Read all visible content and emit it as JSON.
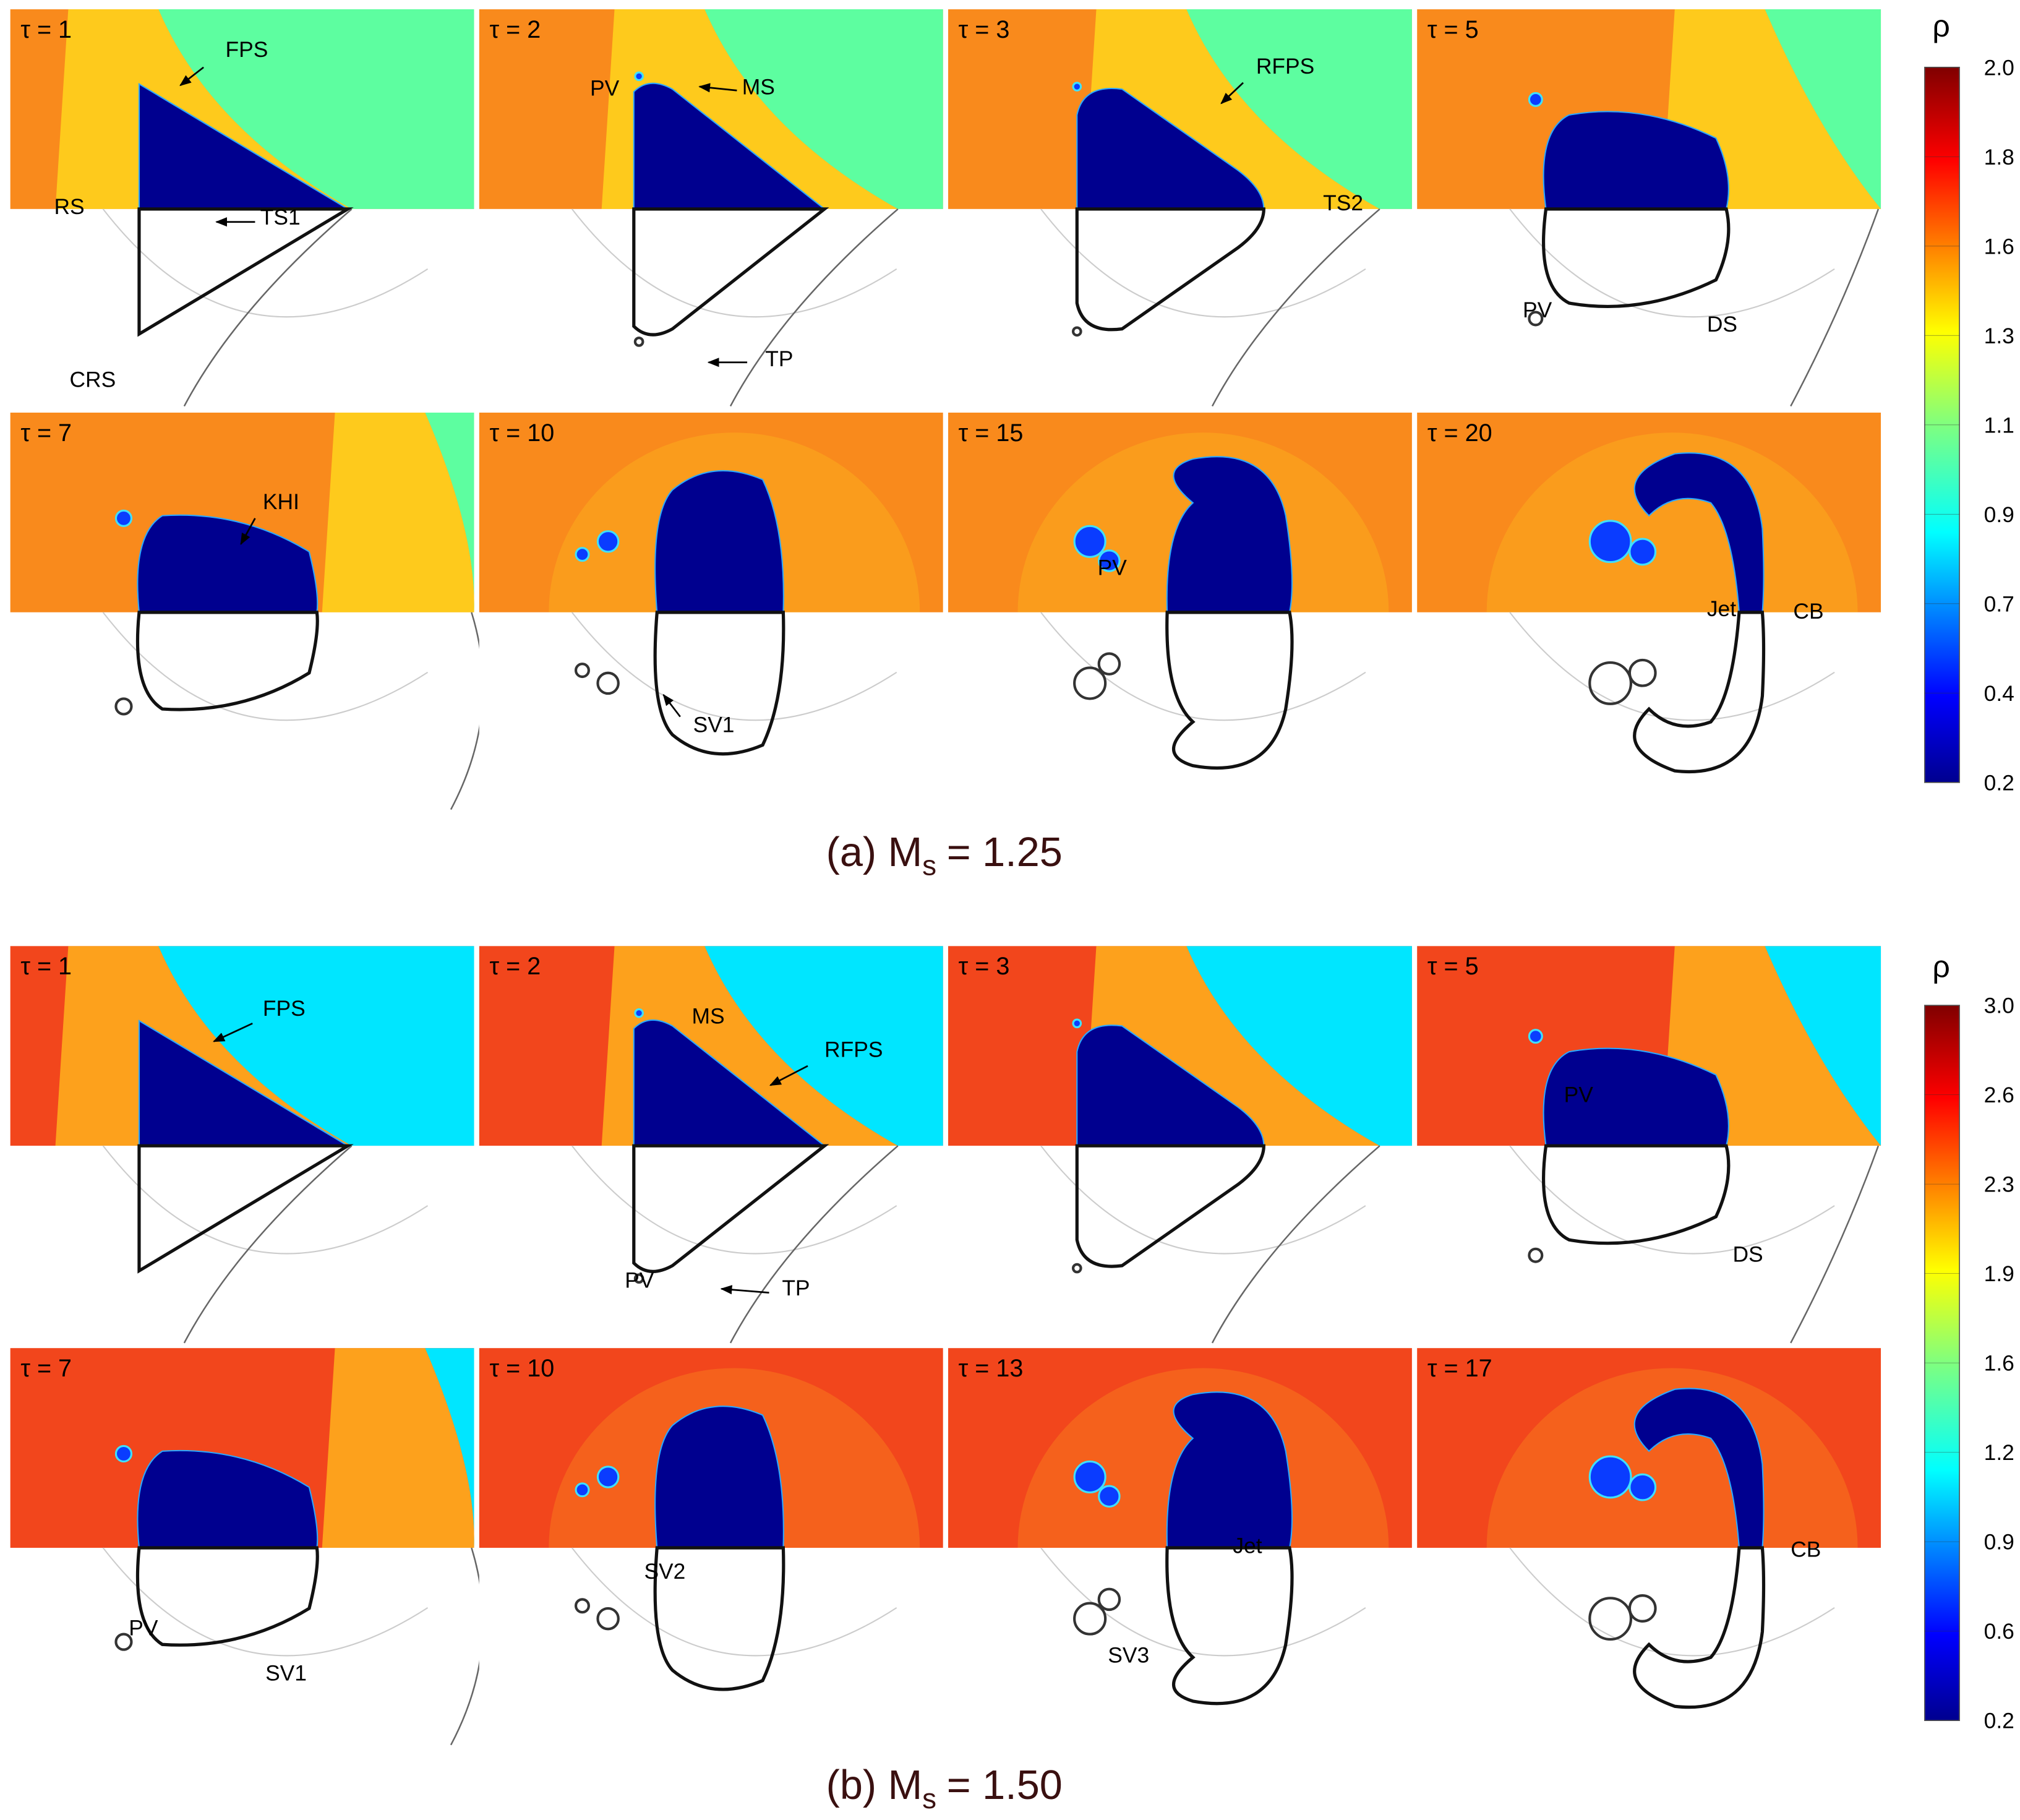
{
  "figures": [
    {
      "caption": {
        "prefix": "(a) M",
        "subscript": "s",
        "suffix": "= 1.25"
      },
      "colorbar": {
        "label": "ρ",
        "ticks": [
          "2.0",
          "1.8",
          "1.6",
          "1.3",
          "1.1",
          "0.9",
          "0.7",
          "0.4",
          "0.2"
        ]
      },
      "panels": [
        {
          "time": "τ = 1",
          "annotations": [
            "FPS",
            "RS",
            "TS1",
            "CRS"
          ]
        },
        {
          "time": "τ = 2",
          "annotations": [
            "PV",
            "MS",
            "TP"
          ]
        },
        {
          "time": "τ = 3",
          "annotations": [
            "RFPS",
            "TS2"
          ]
        },
        {
          "time": "τ = 5",
          "annotations": [
            "PV",
            "DS"
          ]
        },
        {
          "time": "τ = 7",
          "annotations": [
            "KHI"
          ]
        },
        {
          "time": "τ = 10",
          "annotations": [
            "SV1"
          ]
        },
        {
          "time": "τ = 15",
          "annotations": [
            "PV"
          ]
        },
        {
          "time": "τ = 20",
          "annotations": [
            "Jet",
            "CB"
          ]
        }
      ]
    },
    {
      "caption": {
        "prefix": "(b) M",
        "subscript": "s",
        "suffix": "= 1.50"
      },
      "colorbar": {
        "label": "ρ",
        "ticks": [
          "3.0",
          "2.6",
          "2.3",
          "1.9",
          "1.6",
          "1.2",
          "0.9",
          "0.6",
          "0.2"
        ]
      },
      "panels": [
        {
          "time": "τ = 1",
          "annotations": [
            "FPS"
          ]
        },
        {
          "time": "τ = 2",
          "annotations": [
            "MS",
            "RFPS",
            "PV",
            "TP"
          ]
        },
        {
          "time": "τ = 3",
          "annotations": []
        },
        {
          "time": "τ = 5",
          "annotations": [
            "PV",
            "DS"
          ]
        },
        {
          "time": "τ = 7",
          "annotations": [
            "PV",
            "SV1"
          ]
        },
        {
          "time": "τ = 10",
          "annotations": [
            "SV2"
          ]
        },
        {
          "time": "τ = 13",
          "annotations": [
            "Jet",
            "SV3"
          ]
        },
        {
          "time": "τ = 17",
          "annotations": [
            "CB"
          ]
        }
      ]
    }
  ]
}
